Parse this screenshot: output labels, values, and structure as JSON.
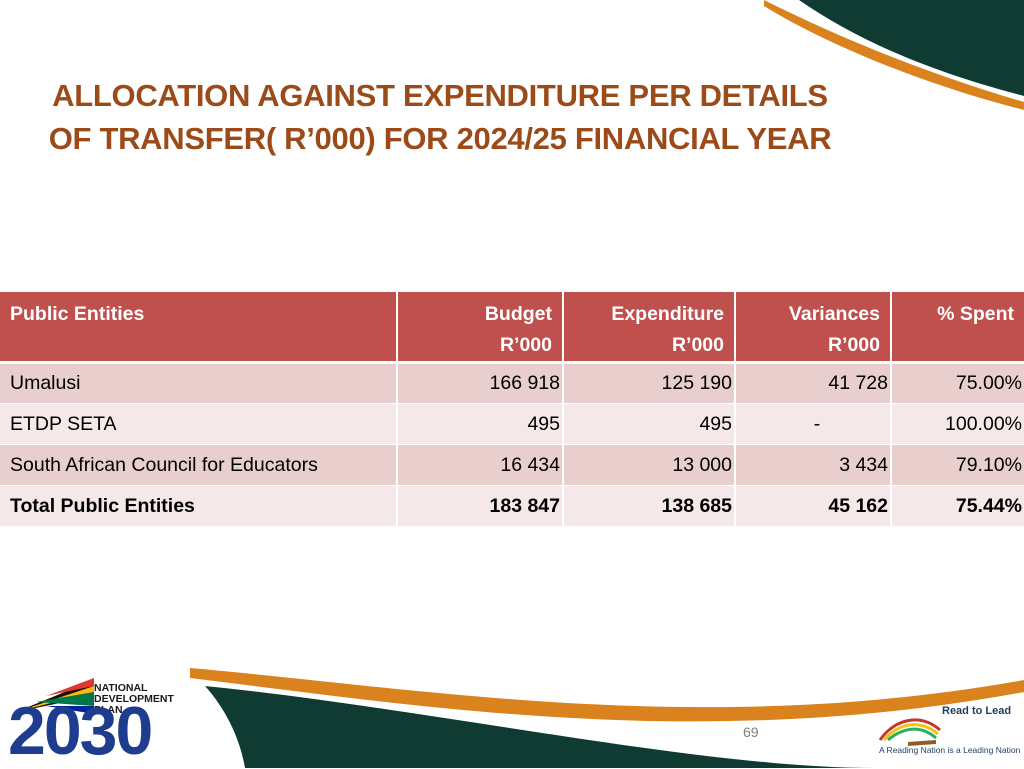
{
  "slide": {
    "title_line1": "ALLOCATION AGAINST EXPENDITURE PER DETAILS",
    "title_line2": "OF TRANSFER( R’000) FOR 2024/25 FINANCIAL YEAR",
    "page_number": "69"
  },
  "colors": {
    "title": "#9b4a18",
    "header_bg": "#c0504d",
    "row_odd": "#e8cfce",
    "row_even": "#f4e9e8",
    "deco_orange": "#d9821e",
    "deco_teal": "#0f3b32"
  },
  "table": {
    "headers": {
      "entity": "Public Entities",
      "budget_line1": "Budget",
      "budget_line2": "R’000",
      "expenditure_line1": "Expenditure",
      "expenditure_line2": "R’000",
      "variances_line1": "Variances",
      "variances_line2": "R’000",
      "spent": "% Spent"
    },
    "rows": [
      {
        "entity": "Umalusi",
        "budget": "166 918",
        "expenditure": "125 190",
        "variance": "41 728",
        "spent": "75.00%"
      },
      {
        "entity": "ETDP SETA",
        "budget": "495",
        "expenditure": "495",
        "variance": "-",
        "spent": "100.00%"
      },
      {
        "entity": "South African Council for Educators",
        "budget": "16 434",
        "expenditure": "13 000",
        "variance": "3 434",
        "spent": "79.10%"
      }
    ],
    "total": {
      "entity": "Total Public Entities",
      "budget": "183 847",
      "expenditure": "138 685",
      "variance": "45 162",
      "spent": "75.44%"
    }
  },
  "logos": {
    "ndp_line1": "NATIONAL",
    "ndp_line2": "DEVELOPMENT",
    "ndp_line3": "PLAN",
    "ndp_year": "2030",
    "rtl_title": "Read to Lead",
    "rtl_tagline": "A Reading Nation is a Leading Nation"
  }
}
